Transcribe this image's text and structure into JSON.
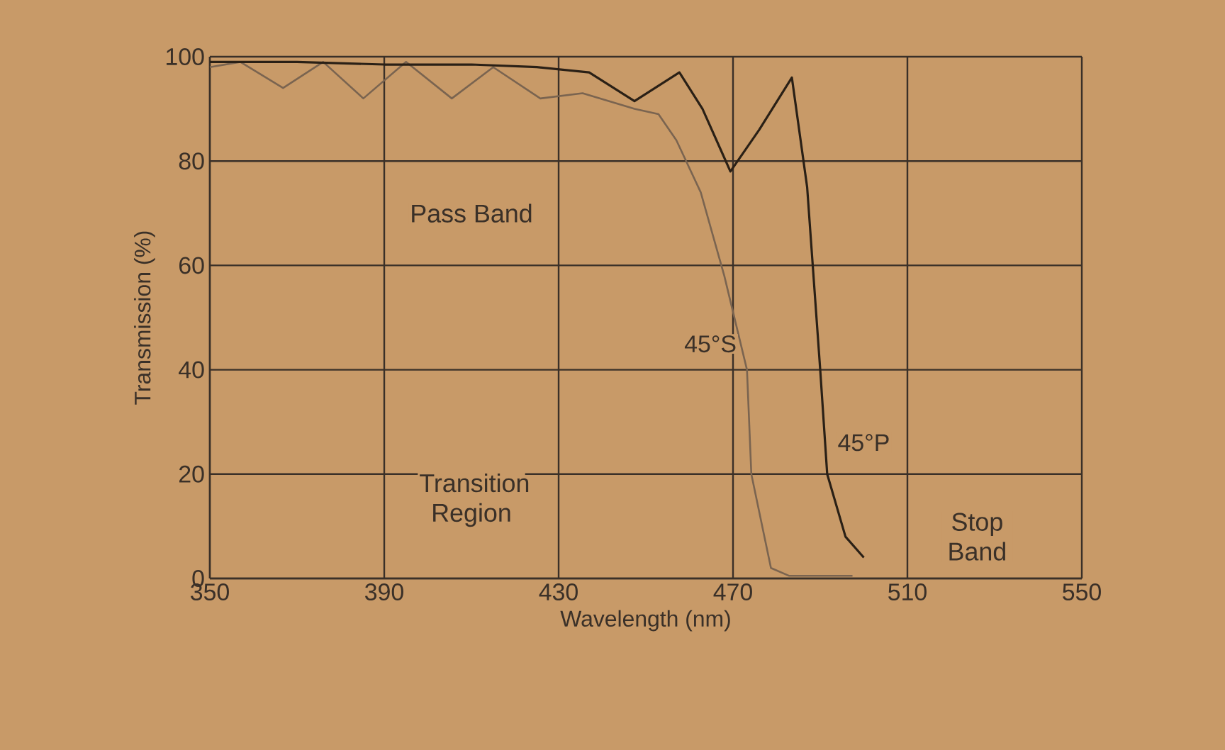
{
  "chart_data": {
    "type": "line",
    "xlabel": "Wavelength (nm)",
    "ylabel": "Transmission (%)",
    "xlim": [
      350,
      550
    ],
    "ylim": [
      0,
      100
    ],
    "xticks": [
      350,
      390,
      430,
      470,
      510,
      550
    ],
    "yticks": [
      0,
      20,
      40,
      60,
      80,
      100
    ],
    "grid": true,
    "series": [
      {
        "name": "45°S",
        "color": "#7a6450",
        "x": [
          350,
          357,
          366.8,
          376,
          385.2,
          395,
          405.5,
          415,
          425.8,
          435.5,
          447.4,
          452.9,
          457,
          462.6,
          468,
          473.2,
          474.2,
          478.7,
          482.9,
          490,
          497.4
        ],
        "values": [
          98,
          99,
          94,
          99,
          92,
          99,
          92,
          98,
          92,
          93,
          90,
          89,
          84,
          74,
          58,
          40,
          20,
          2,
          0.5,
          0.5,
          0.5
        ]
      },
      {
        "name": "45°P",
        "color": "#2a2016",
        "x": [
          350,
          370,
          390,
          410,
          425,
          437,
          447.4,
          457.7,
          463,
          469.4,
          476,
          483.5,
          487,
          490,
          491.6,
          495.8,
          500
        ],
        "values": [
          99,
          99,
          98.5,
          98.5,
          98,
          97,
          91.5,
          97,
          90,
          78,
          86,
          96,
          75,
          40,
          20,
          8,
          4
        ]
      }
    ],
    "annotations": [
      "Pass Band",
      "Transition Region",
      "Stop Band"
    ]
  }
}
